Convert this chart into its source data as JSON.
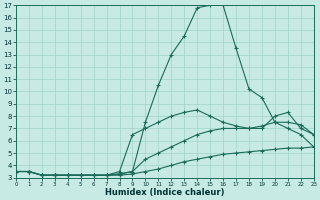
{
  "xlabel": "Humidex (Indice chaleur)",
  "bg_color": "#c8eae4",
  "line_color": "#1a6b5a",
  "grid_color": "#a0d4c8",
  "xlim": [
    0,
    23
  ],
  "ylim": [
    3,
    17
  ],
  "xticks": [
    0,
    1,
    2,
    3,
    4,
    5,
    6,
    7,
    8,
    9,
    10,
    11,
    12,
    13,
    14,
    15,
    16,
    17,
    18,
    19,
    20,
    21,
    22,
    23
  ],
  "yticks": [
    3,
    4,
    5,
    6,
    7,
    8,
    9,
    10,
    11,
    12,
    13,
    14,
    15,
    16,
    17
  ],
  "lines": [
    {
      "x": [
        0,
        1,
        2,
        3,
        4,
        5,
        6,
        7,
        8,
        9,
        10,
        11,
        12,
        13,
        14,
        15,
        16,
        17,
        18,
        19,
        20,
        21,
        22,
        23
      ],
      "y": [
        3.5,
        3.5,
        3.2,
        3.2,
        3.2,
        3.2,
        3.2,
        3.2,
        3.2,
        3.3,
        3.5,
        3.7,
        4.0,
        4.3,
        4.5,
        4.7,
        4.9,
        5.0,
        5.1,
        5.2,
        5.3,
        5.4,
        5.4,
        5.5
      ]
    },
    {
      "x": [
        0,
        1,
        2,
        3,
        4,
        5,
        6,
        7,
        8,
        9,
        10,
        11,
        12,
        13,
        14,
        15,
        16,
        17,
        18,
        19,
        20,
        21,
        22,
        23
      ],
      "y": [
        3.5,
        3.5,
        3.2,
        3.2,
        3.2,
        3.2,
        3.2,
        3.2,
        3.3,
        3.5,
        4.5,
        5.0,
        5.5,
        6.0,
        6.5,
        6.8,
        7.0,
        7.0,
        7.0,
        7.2,
        7.5,
        7.5,
        7.3,
        6.5
      ]
    },
    {
      "x": [
        0,
        1,
        2,
        3,
        4,
        5,
        6,
        7,
        8,
        9,
        10,
        11,
        12,
        13,
        14,
        15,
        16,
        17,
        18,
        19,
        20,
        21,
        22,
        23
      ],
      "y": [
        3.5,
        3.5,
        3.2,
        3.2,
        3.2,
        3.2,
        3.2,
        3.2,
        3.5,
        6.5,
        7.0,
        7.5,
        8.0,
        8.3,
        8.5,
        8.0,
        7.5,
        7.2,
        7.0,
        7.0,
        8.0,
        8.3,
        7.0,
        6.5
      ]
    },
    {
      "x": [
        0,
        1,
        2,
        3,
        4,
        5,
        6,
        7,
        8,
        9,
        10,
        11,
        12,
        13,
        14,
        15,
        16,
        17,
        18,
        19,
        20,
        21,
        22,
        23
      ],
      "y": [
        3.5,
        3.5,
        3.2,
        3.2,
        3.2,
        3.2,
        3.2,
        3.2,
        3.3,
        3.5,
        7.5,
        10.5,
        13.0,
        14.5,
        16.8,
        17.0,
        17.0,
        13.5,
        10.2,
        9.5,
        7.5,
        7.0,
        6.5,
        5.5
      ]
    }
  ]
}
